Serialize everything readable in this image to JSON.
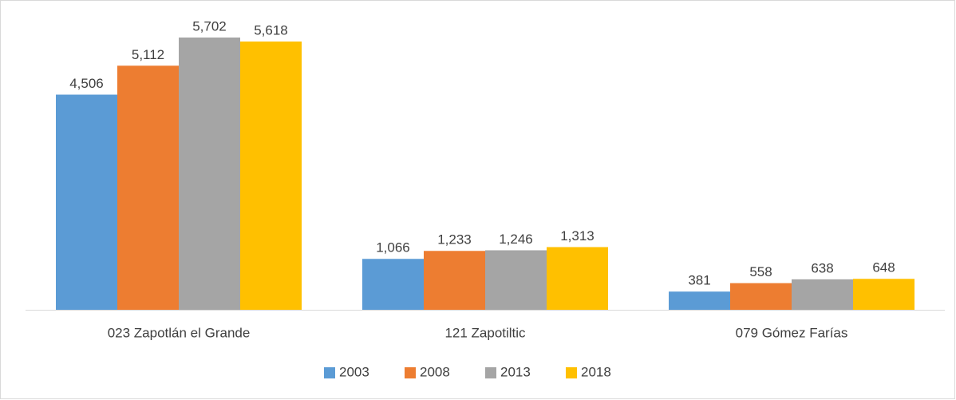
{
  "chart_data": {
    "type": "bar",
    "categories": [
      "023 Zapotlán el Grande",
      "121 Zapotiltic",
      "079 Gómez Farías"
    ],
    "series": [
      {
        "name": "2003",
        "color": "#5b9bd5",
        "values": [
          4506,
          1066,
          381
        ],
        "value_labels": [
          "4,506",
          "1,066",
          "381"
        ]
      },
      {
        "name": "2008",
        "color": "#ed7d31",
        "values": [
          5112,
          1233,
          558
        ],
        "value_labels": [
          "5,112",
          "1,233",
          "558"
        ]
      },
      {
        "name": "2013",
        "color": "#a5a5a5",
        "values": [
          5702,
          1246,
          638
        ],
        "value_labels": [
          "5,702",
          "1,246",
          "638"
        ]
      },
      {
        "name": "2018",
        "color": "#ffc000",
        "values": [
          5618,
          1313,
          648
        ],
        "value_labels": [
          "5,618",
          "1,313",
          "648"
        ]
      }
    ],
    "legend": "bottom"
  }
}
